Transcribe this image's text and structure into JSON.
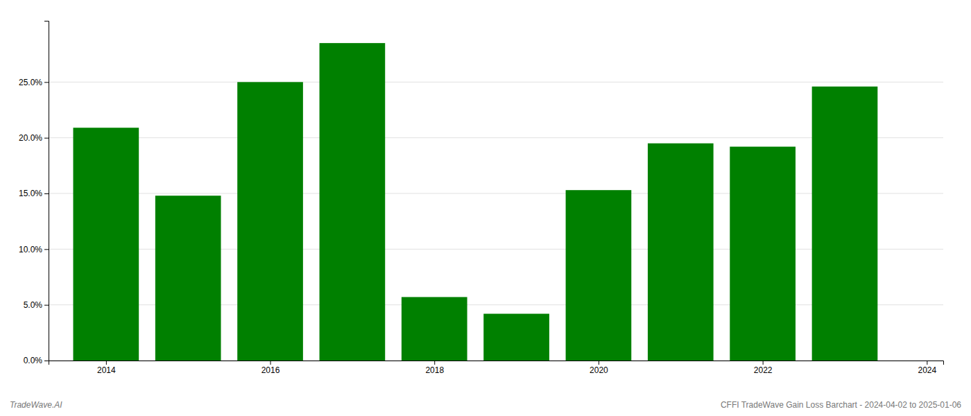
{
  "chart_data": {
    "type": "bar",
    "x": [
      2014,
      2015,
      2016,
      2017,
      2018,
      2019,
      2020,
      2021,
      2022,
      2023
    ],
    "values": [
      0.209,
      0.148,
      0.25,
      0.285,
      0.057,
      0.042,
      0.153,
      0.195,
      0.192,
      0.246
    ],
    "color": "#008000",
    "xlim": [
      2013.3,
      2024.2
    ],
    "xticks": [
      2014,
      2016,
      2018,
      2020,
      2022,
      2024
    ],
    "ylim": [
      0,
      0.305
    ],
    "yticks": [
      {
        "value": 0.0,
        "label": "0.0%"
      },
      {
        "value": 0.05,
        "label": "5.0%"
      },
      {
        "value": 0.1,
        "label": "10.0%"
      },
      {
        "value": 0.15,
        "label": "15.0%"
      },
      {
        "value": 0.2,
        "label": "20.0%"
      },
      {
        "value": 0.25,
        "label": "25.0%"
      }
    ],
    "grid": true,
    "annotations": [
      "TradeWave.AI",
      "CFFI TradeWave Gain Loss Barchart - 2024-04-02 to 2025-01-06"
    ]
  }
}
